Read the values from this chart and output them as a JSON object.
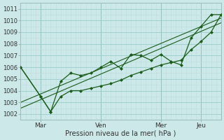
{
  "xlabel": "Pression niveau de la mer( hPa )",
  "bg_color": "#cce8e8",
  "grid_color_major": "#99cccc",
  "grid_color_minor": "#bbdddd",
  "line_color": "#1a5c1a",
  "ylim": [
    1001.5,
    1011.5
  ],
  "yticks": [
    1002,
    1003,
    1004,
    1005,
    1006,
    1007,
    1008,
    1009,
    1010,
    1011
  ],
  "xtick_labels": [
    "Mar",
    "Ven",
    "Mer",
    "Jeu"
  ],
  "xtick_positions": [
    12,
    48,
    84,
    108
  ],
  "xlim": [
    0,
    120
  ],
  "vline_x": [
    12,
    48,
    84,
    108
  ],
  "series1_x": [
    0,
    12,
    18,
    24,
    30,
    36,
    42,
    48,
    54,
    60,
    66,
    72,
    78,
    84,
    90,
    96,
    102,
    108,
    114,
    120
  ],
  "series1_y": [
    1006.0,
    1003.5,
    1002.2,
    1004.8,
    1005.5,
    1005.3,
    1005.5,
    1006.0,
    1006.5,
    1005.9,
    1007.1,
    1007.0,
    1006.6,
    1007.1,
    1006.5,
    1006.2,
    1008.5,
    1009.5,
    1010.5,
    1010.5
  ],
  "series2_x": [
    0,
    12,
    18,
    24,
    30,
    36,
    42,
    48,
    54,
    60,
    66,
    72,
    78,
    84,
    90,
    96,
    102,
    108,
    114,
    120
  ],
  "series2_y": [
    1006.0,
    1003.5,
    1002.2,
    1003.5,
    1004.0,
    1004.0,
    1004.2,
    1004.4,
    1004.6,
    1004.9,
    1005.3,
    1005.6,
    1005.9,
    1006.2,
    1006.4,
    1006.6,
    1007.5,
    1008.2,
    1009.0,
    1010.5
  ],
  "trend1_x": [
    0,
    120
  ],
  "trend1_y": [
    1003.0,
    1010.2
  ],
  "trend2_x": [
    0,
    120
  ],
  "trend2_y": [
    1002.5,
    1009.8
  ]
}
